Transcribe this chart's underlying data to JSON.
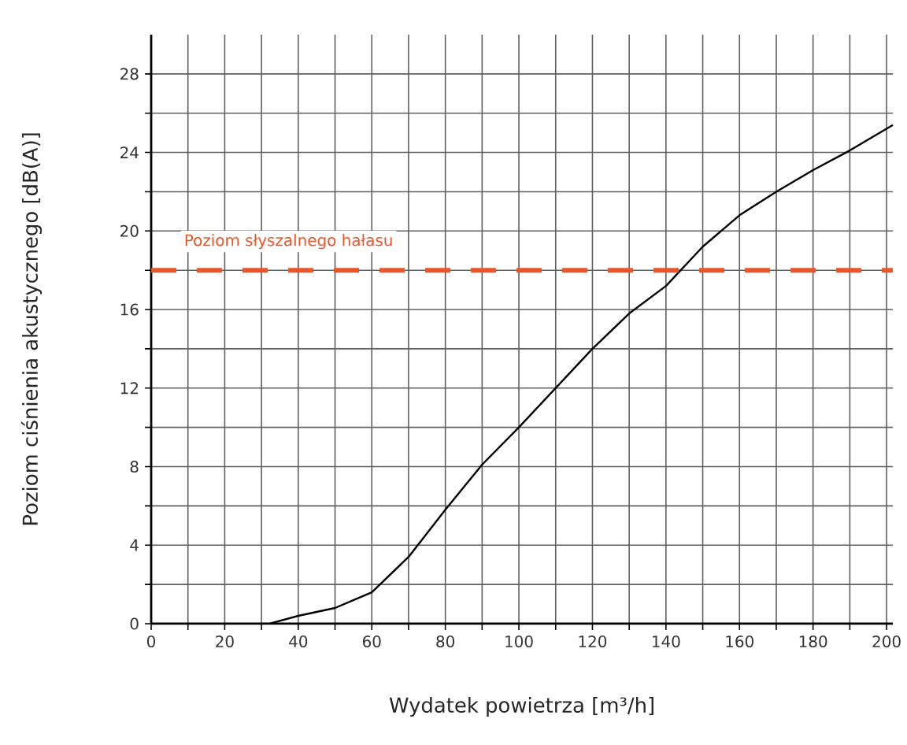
{
  "chart_data": {
    "type": "line",
    "xlabel": "Wydatek powietrza [m³/h]",
    "ylabel": "Poziom ciśnienia akustycznego [dB(A)]",
    "x": [
      32.2,
      40,
      50,
      60,
      70,
      80,
      90,
      100,
      110,
      120,
      130,
      140,
      150,
      160,
      170,
      180,
      190,
      201.7
    ],
    "series": [
      {
        "color": "#000000",
        "values": [
          0,
          0.4,
          0.8,
          1.6,
          3.4,
          5.8,
          8.1,
          10.0,
          12.0,
          14.0,
          15.8,
          17.2,
          19.2,
          20.8,
          22.0,
          23.1,
          24.1,
          25.4
        ]
      }
    ],
    "xlim": [
      0,
      201.7
    ],
    "ylim": [
      0,
      30
    ],
    "xticks": [
      0,
      {
        "value": 10,
        "label": null
      },
      20,
      {
        "value": 30,
        "label": null
      },
      40,
      {
        "value": 50,
        "label": null
      },
      60,
      {
        "value": 70,
        "label": null
      },
      80,
      {
        "value": 90,
        "label": null
      },
      100,
      {
        "value": 110,
        "label": null
      },
      120,
      {
        "value": 130,
        "label": null
      },
      140,
      {
        "value": 150,
        "label": null
      },
      160,
      {
        "value": 170,
        "label": null
      },
      180,
      {
        "value": 190,
        "label": null
      },
      200
    ],
    "yticks": [
      0,
      {
        "value": 2,
        "label": null
      },
      4,
      {
        "value": 6,
        "label": null
      },
      8,
      {
        "value": 10,
        "label": null
      },
      12,
      {
        "value": 14,
        "label": null
      },
      16,
      {
        "value": 18,
        "label": null
      },
      20,
      {
        "value": 22,
        "label": null
      },
      24,
      {
        "value": 26,
        "label": null
      },
      28
    ],
    "grid": true,
    "marker": "none",
    "line_style": "solid",
    "ref_lines": [
      {
        "axis": "y",
        "value": 18,
        "label": "Poziom słyszalnego hałasu",
        "color": "#e8562a",
        "line_style": "dashed"
      }
    ]
  }
}
